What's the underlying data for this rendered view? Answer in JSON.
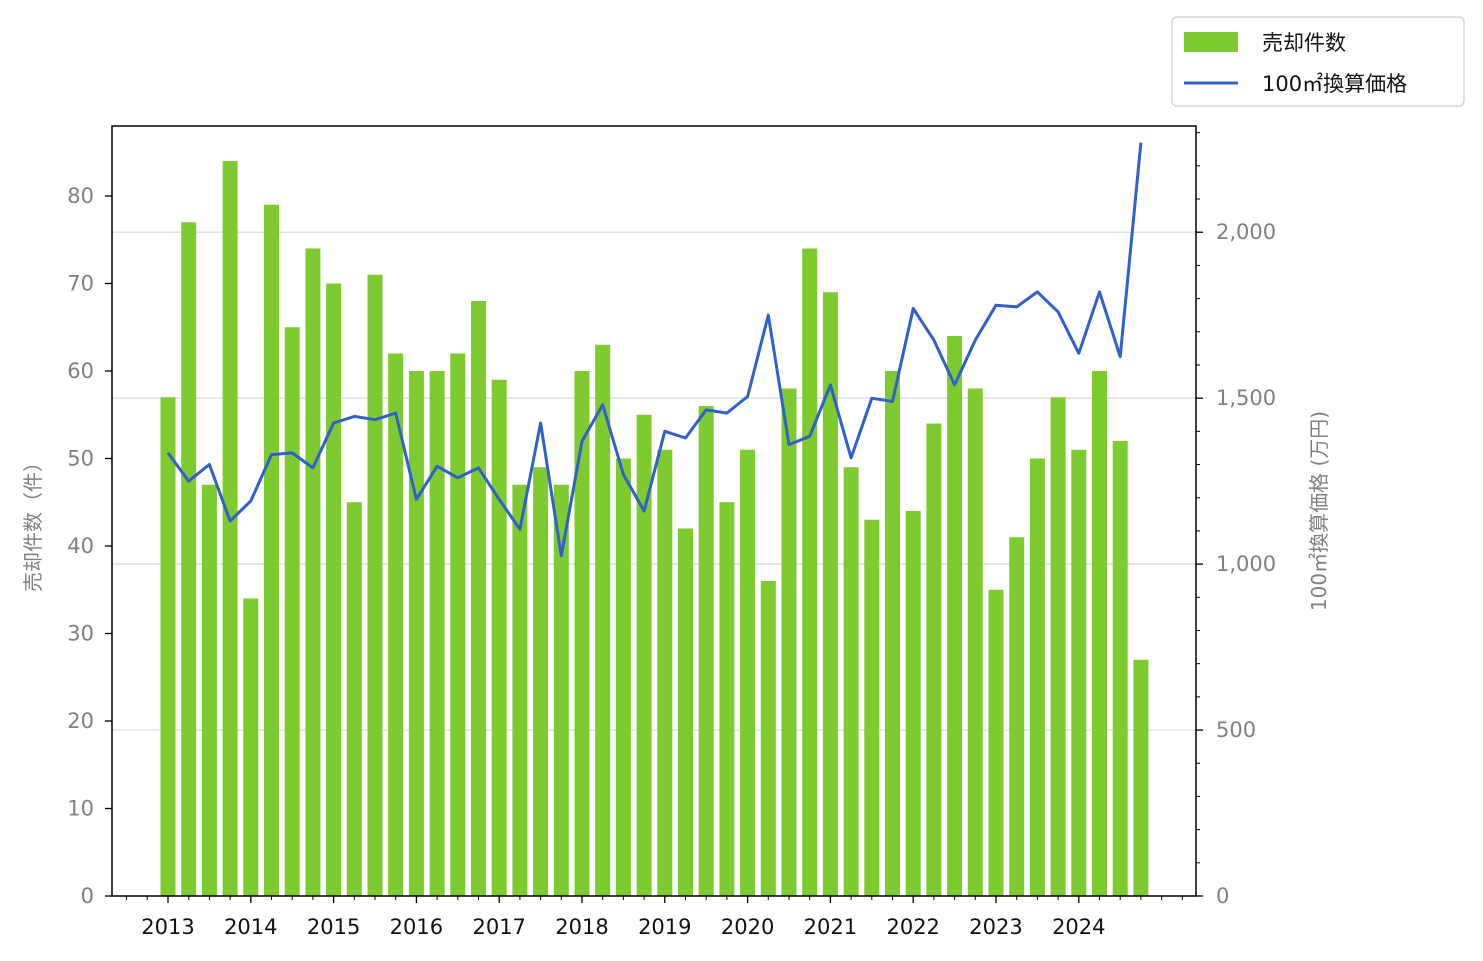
{
  "chart_data": {
    "type": "bar",
    "x_labels": [
      "2013",
      "2014",
      "2015",
      "2016",
      "2017",
      "2018",
      "2019",
      "2020",
      "2021",
      "2022",
      "2023",
      "2024"
    ],
    "series": [
      {
        "name": "売却件数",
        "type": "bar",
        "axis": "left",
        "color": "#7ecb30",
        "values": [
          57,
          77,
          47,
          84,
          34,
          79,
          65,
          74,
          70,
          45,
          71,
          62,
          60,
          60,
          62,
          68,
          59,
          47,
          49,
          47,
          60,
          63,
          50,
          55,
          51,
          42,
          56,
          45,
          51,
          36,
          58,
          74,
          69,
          49,
          43,
          60,
          44,
          54,
          64,
          58,
          35,
          41,
          50,
          57,
          51,
          60,
          52,
          27
        ]
      },
      {
        "name": "100㎡換算価格",
        "type": "line",
        "axis": "right",
        "color": "#3060c8",
        "values": [
          1335,
          1250,
          1300,
          1130,
          1190,
          1330,
          1335,
          1290,
          1425,
          1445,
          1435,
          1455,
          1195,
          1295,
          1260,
          1290,
          1195,
          1105,
          1425,
          1025,
          1370,
          1480,
          1270,
          1160,
          1400,
          1380,
          1465,
          1455,
          1505,
          1750,
          1360,
          1385,
          1540,
          1320,
          1500,
          1490,
          1770,
          1675,
          1540,
          1675,
          1780,
          1775,
          1820,
          1760,
          1635,
          1820,
          1625,
          2270
        ]
      }
    ],
    "left_axis": {
      "label": "売却件数（件）",
      "ylim": [
        0,
        88
      ],
      "ticks": [
        0,
        10,
        20,
        30,
        40,
        50,
        60,
        70,
        80
      ]
    },
    "right_axis": {
      "label": "100㎡換算価格 (万円)",
      "ylim": [
        0,
        2320
      ],
      "ticks": [
        0,
        500,
        1000,
        1500,
        2000
      ],
      "tick_labels": [
        "0",
        "500",
        "1,000",
        "1,500",
        "2,000"
      ]
    },
    "grid": "horizontal (right axis)",
    "legend_position": "top-right, outside plot"
  }
}
